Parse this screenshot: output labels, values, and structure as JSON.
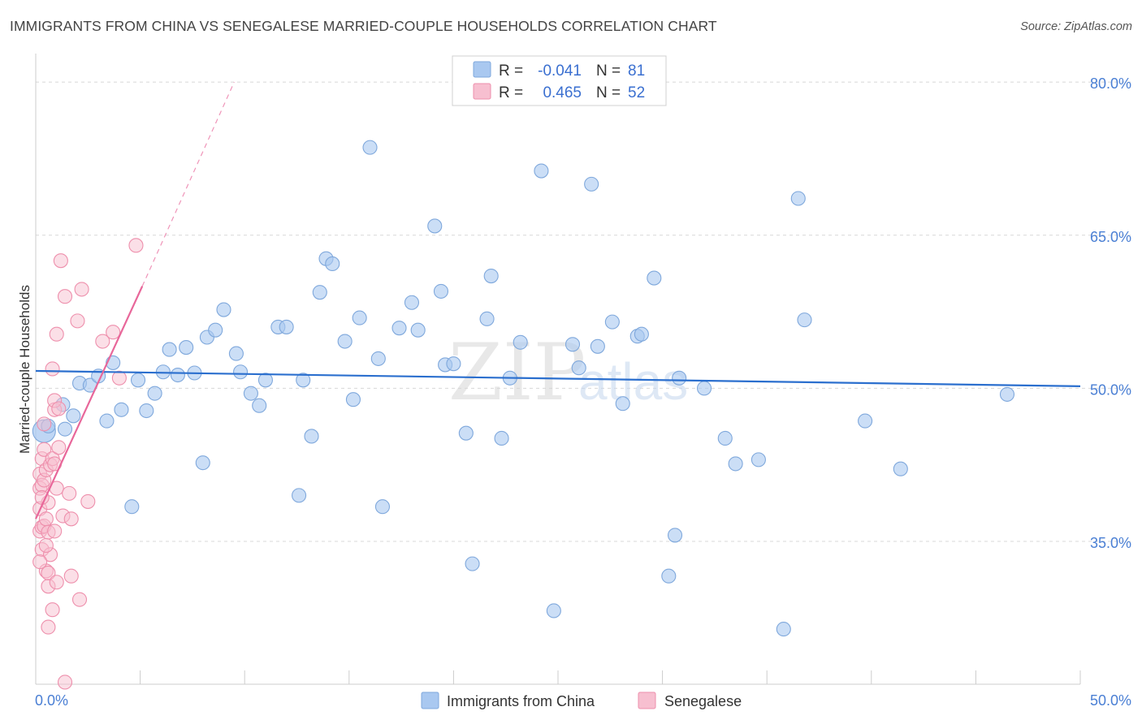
{
  "title": "IMMIGRANTS FROM CHINA VS SENEGALESE MARRIED-COUPLE HOUSEHOLDS CORRELATION CHART",
  "source": "Source: ZipAtlas.com",
  "watermark": {
    "zip": "ZIP",
    "atlas": "atlas"
  },
  "colors": {
    "china_fill": "#a9c8f0",
    "china_stroke": "#7fa8dc",
    "china_line": "#2b6fce",
    "sen_fill": "#f7bfd0",
    "sen_stroke": "#ee8fac",
    "sen_line": "#e8679a",
    "grid": "#d8d8d8",
    "axis": "#cccccc",
    "tick_text": "#4a7fd4"
  },
  "legend": {
    "rows": [
      {
        "r_label": "R =",
        "r_value": "-0.041",
        "n_label": "N =",
        "n_value": "81"
      },
      {
        "r_label": "R =",
        "r_value": "0.465",
        "n_label": "N =",
        "n_value": "52"
      }
    ]
  },
  "chart_data": {
    "type": "scatter",
    "xlabel": "",
    "ylabel": "Married-couple Households",
    "xlim": [
      0,
      50
    ],
    "ylim": [
      21,
      82
    ],
    "x_tick_labels": [
      {
        "value": 0,
        "label": "0.0%"
      },
      {
        "value": 50,
        "label": "50.0%"
      }
    ],
    "x_minor_ticks": [
      0,
      5,
      10,
      15,
      20,
      25,
      30,
      35,
      40,
      45,
      50
    ],
    "y_ticks": [
      {
        "value": 80,
        "label": "80.0%"
      },
      {
        "value": 65,
        "label": "65.0%"
      },
      {
        "value": 50,
        "label": "50.0%"
      },
      {
        "value": 35,
        "label": "35.0%"
      }
    ],
    "legend_position": "top-center",
    "series": [
      {
        "name": "Immigrants from China",
        "R": -0.041,
        "N": 81,
        "trend": {
          "x": [
            0,
            50
          ],
          "y": [
            51.7,
            50.2
          ]
        },
        "points": [
          [
            0.4,
            45.8
          ],
          [
            0.6,
            46.3
          ],
          [
            1.3,
            48.4
          ],
          [
            1.4,
            46.0
          ],
          [
            1.8,
            47.3
          ],
          [
            2.1,
            50.5
          ],
          [
            2.6,
            50.3
          ],
          [
            3.0,
            51.2
          ],
          [
            3.4,
            46.8
          ],
          [
            3.7,
            52.5
          ],
          [
            4.1,
            47.9
          ],
          [
            4.6,
            38.4
          ],
          [
            4.9,
            50.8
          ],
          [
            5.3,
            47.8
          ],
          [
            5.7,
            49.5
          ],
          [
            6.1,
            51.6
          ],
          [
            6.4,
            53.8
          ],
          [
            6.8,
            51.3
          ],
          [
            7.2,
            54.0
          ],
          [
            7.6,
            51.5
          ],
          [
            8.0,
            42.7
          ],
          [
            8.2,
            55.0
          ],
          [
            8.6,
            55.7
          ],
          [
            9.0,
            57.7
          ],
          [
            9.6,
            53.4
          ],
          [
            9.8,
            51.6
          ],
          [
            10.3,
            49.5
          ],
          [
            10.7,
            48.3
          ],
          [
            11.0,
            50.8
          ],
          [
            11.6,
            56.0
          ],
          [
            12.0,
            56.0
          ],
          [
            12.6,
            39.5
          ],
          [
            12.8,
            50.8
          ],
          [
            13.2,
            45.3
          ],
          [
            13.6,
            59.4
          ],
          [
            13.9,
            62.7
          ],
          [
            14.2,
            62.2
          ],
          [
            14.8,
            54.6
          ],
          [
            15.2,
            48.9
          ],
          [
            15.5,
            56.9
          ],
          [
            16.0,
            73.6
          ],
          [
            16.4,
            52.9
          ],
          [
            16.6,
            38.4
          ],
          [
            17.4,
            55.9
          ],
          [
            18.0,
            58.4
          ],
          [
            18.3,
            55.7
          ],
          [
            19.1,
            65.9
          ],
          [
            19.4,
            59.5
          ],
          [
            19.6,
            52.3
          ],
          [
            20.0,
            52.4
          ],
          [
            20.6,
            45.6
          ],
          [
            21.6,
            56.8
          ],
          [
            21.8,
            61.0
          ],
          [
            22.3,
            45.1
          ],
          [
            22.7,
            51.0
          ],
          [
            23.2,
            54.5
          ],
          [
            24.2,
            71.3
          ],
          [
            24.8,
            28.2
          ],
          [
            25.7,
            54.3
          ],
          [
            26.0,
            52.0
          ],
          [
            26.6,
            70.0
          ],
          [
            26.9,
            54.1
          ],
          [
            27.6,
            56.5
          ],
          [
            28.1,
            48.5
          ],
          [
            28.8,
            55.1
          ],
          [
            29.0,
            55.3
          ],
          [
            29.6,
            60.8
          ],
          [
            30.3,
            31.6
          ],
          [
            30.6,
            35.6
          ],
          [
            30.8,
            51.0
          ],
          [
            32.0,
            50.0
          ],
          [
            33.0,
            45.1
          ],
          [
            33.5,
            42.6
          ],
          [
            34.6,
            43.0
          ],
          [
            35.8,
            26.4
          ],
          [
            36.5,
            68.6
          ],
          [
            36.8,
            56.7
          ],
          [
            39.7,
            46.8
          ],
          [
            41.4,
            42.1
          ],
          [
            46.5,
            49.4
          ],
          [
            20.9,
            32.8
          ]
        ]
      },
      {
        "name": "Senegalese",
        "R": 0.465,
        "N": 52,
        "trend": {
          "x": [
            0,
            5.1
          ],
          "y": [
            37.2,
            60.0
          ],
          "dash_to": {
            "x": 9.5,
            "y": 80.0
          }
        },
        "points": [
          [
            0.2,
            36.0
          ],
          [
            0.2,
            38.2
          ],
          [
            0.2,
            40.2
          ],
          [
            0.2,
            41.6
          ],
          [
            0.3,
            36.4
          ],
          [
            0.3,
            34.2
          ],
          [
            0.3,
            40.5
          ],
          [
            0.3,
            43.1
          ],
          [
            0.4,
            41.0
          ],
          [
            0.4,
            36.5
          ],
          [
            0.4,
            46.5
          ],
          [
            0.4,
            44.0
          ],
          [
            0.5,
            32.1
          ],
          [
            0.5,
            37.2
          ],
          [
            0.5,
            42.0
          ],
          [
            0.6,
            26.6
          ],
          [
            0.6,
            30.6
          ],
          [
            0.6,
            31.9
          ],
          [
            0.6,
            35.9
          ],
          [
            0.6,
            38.8
          ],
          [
            0.7,
            33.7
          ],
          [
            0.7,
            42.5
          ],
          [
            0.8,
            28.3
          ],
          [
            0.8,
            51.9
          ],
          [
            0.8,
            43.1
          ],
          [
            0.9,
            47.9
          ],
          [
            0.9,
            42.6
          ],
          [
            0.9,
            48.8
          ],
          [
            0.9,
            36.0
          ],
          [
            1.0,
            55.3
          ],
          [
            1.0,
            31.0
          ],
          [
            1.0,
            40.2
          ],
          [
            1.1,
            44.2
          ],
          [
            1.1,
            48.0
          ],
          [
            1.2,
            62.5
          ],
          [
            1.3,
            37.5
          ],
          [
            1.4,
            59.0
          ],
          [
            1.4,
            21.2
          ],
          [
            1.6,
            39.7
          ],
          [
            1.7,
            31.6
          ],
          [
            1.7,
            37.2
          ],
          [
            2.0,
            56.6
          ],
          [
            2.1,
            29.3
          ],
          [
            2.2,
            59.7
          ],
          [
            2.5,
            38.9
          ],
          [
            3.2,
            54.6
          ],
          [
            3.7,
            55.5
          ],
          [
            4.0,
            51.0
          ],
          [
            4.8,
            64.0
          ],
          [
            0.2,
            33.0
          ],
          [
            0.5,
            34.6
          ],
          [
            0.3,
            39.3
          ]
        ]
      }
    ]
  },
  "bottom_legend": [
    {
      "label": "Immigrants from China"
    },
    {
      "label": "Senegalese"
    }
  ]
}
